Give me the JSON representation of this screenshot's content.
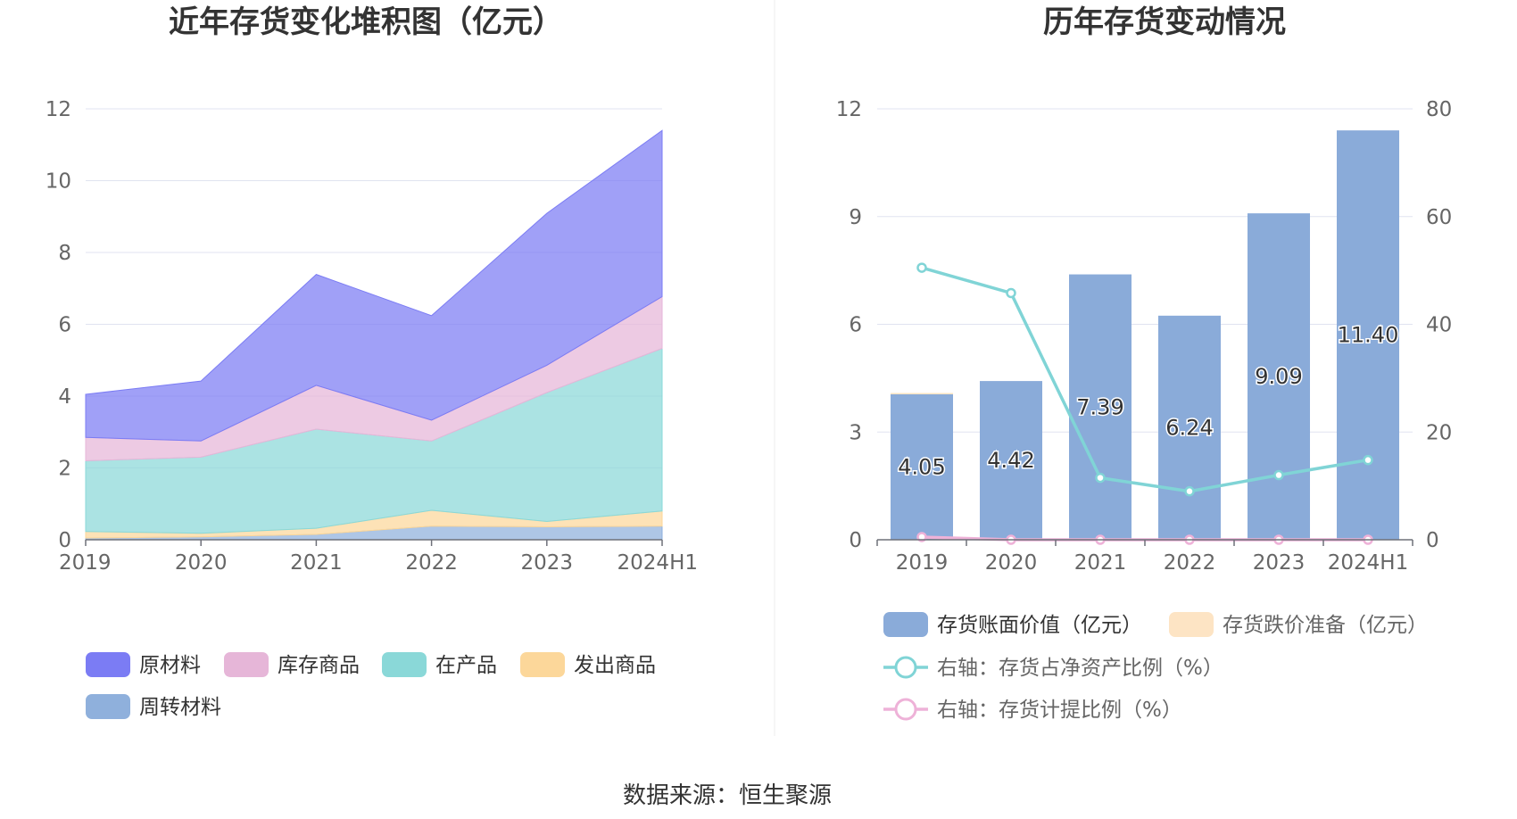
{
  "source": "数据来源：恒生聚源",
  "colors": {
    "raw_materials": "#7b7cf4",
    "finished_goods": "#e6b6d8",
    "wip": "#8ad8d8",
    "goods_shipped": "#fcd79a",
    "turnover_materials": "#8fb0dc",
    "book_value_bar": "#8aabd9",
    "impairment_bar": "#fde4c4",
    "ratio_line": "#80d4d6",
    "provision_line": "#eeb2d8",
    "grid": "#e0e3f0",
    "axis": "#6e7079"
  },
  "chart_data": [
    {
      "type": "area",
      "stacked": true,
      "title": "近年存货变化堆积图（亿元）",
      "categories": [
        "2019",
        "2020",
        "2021",
        "2022",
        "2023",
        "2024H1"
      ],
      "ylim": [
        0,
        12
      ],
      "yticks": [
        "0",
        "2",
        "4",
        "6",
        "8",
        "10",
        "12"
      ],
      "grid": true,
      "legend_placement": "bottom",
      "series": [
        {
          "name": "周转材料",
          "key": "turnover_materials",
          "values": [
            0.05,
            0.08,
            0.15,
            0.38,
            0.36,
            0.38
          ]
        },
        {
          "name": "发出商品",
          "key": "goods_shipped",
          "values": [
            0.18,
            0.1,
            0.17,
            0.44,
            0.15,
            0.42
          ]
        },
        {
          "name": "在产品",
          "key": "wip",
          "values": [
            1.97,
            2.12,
            2.76,
            1.93,
            3.59,
            4.53
          ]
        },
        {
          "name": "库存商品",
          "key": "finished_goods",
          "values": [
            0.65,
            0.45,
            1.22,
            0.58,
            0.76,
            1.44
          ]
        },
        {
          "name": "原材料",
          "key": "raw_materials",
          "values": [
            1.2,
            1.67,
            3.09,
            2.91,
            4.23,
            4.63
          ]
        }
      ],
      "legend_order": [
        "原材料",
        "库存商品",
        "在产品",
        "发出商品",
        "周转材料"
      ]
    },
    {
      "type": "bar",
      "title": "历年存货变动情况",
      "categories": [
        "2019",
        "2020",
        "2021",
        "2022",
        "2023",
        "2024H1"
      ],
      "ylim": [
        0,
        12
      ],
      "yticks": [
        "0",
        "3",
        "6",
        "9",
        "12"
      ],
      "y2lim": [
        0,
        80
      ],
      "y2ticks": [
        "0",
        "20",
        "40",
        "60",
        "80"
      ],
      "grid": true,
      "legend_placement": "bottom",
      "bars": [
        {
          "name": "存货账面价值（亿元）",
          "key": "book_value_bar",
          "values": [
            4.05,
            4.42,
            7.39,
            6.24,
            9.09,
            11.4
          ],
          "labels": [
            "4.05",
            "4.42",
            "7.39",
            "6.24",
            "9.09",
            "11.40"
          ]
        },
        {
          "name": "存货跌价准备（亿元）",
          "key": "impairment_bar",
          "values": [
            0.02,
            0,
            0,
            0,
            0,
            0
          ]
        }
      ],
      "lines": [
        {
          "name": "右轴：存货占净资产比例（%）",
          "key": "ratio_line",
          "axis": "right",
          "values": [
            50.5,
            45.8,
            11.5,
            9.0,
            12.0,
            14.8
          ]
        },
        {
          "name": "右轴：存货计提比例（%）",
          "key": "provision_line",
          "axis": "right",
          "values": [
            0.5,
            0.0,
            0.0,
            0.0,
            0.0,
            0.0
          ]
        }
      ]
    }
  ]
}
